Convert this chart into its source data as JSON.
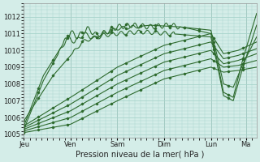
{
  "title": "Pression niveau de la mer( hPa )",
  "bg_color": "#d4ede8",
  "grid_color": "#a8d4cc",
  "line_color": "#2d6a2d",
  "ylim": [
    1004.8,
    1012.8
  ],
  "yticks": [
    1005,
    1006,
    1007,
    1008,
    1009,
    1010,
    1011,
    1012
  ],
  "day_labels": [
    "Jeu",
    "Ven",
    "Sam",
    "Dim",
    "Lun",
    "Ma"
  ],
  "day_positions": [
    0,
    48,
    96,
    144,
    192,
    228
  ],
  "xlim": [
    0,
    239
  ],
  "n_points": 240
}
